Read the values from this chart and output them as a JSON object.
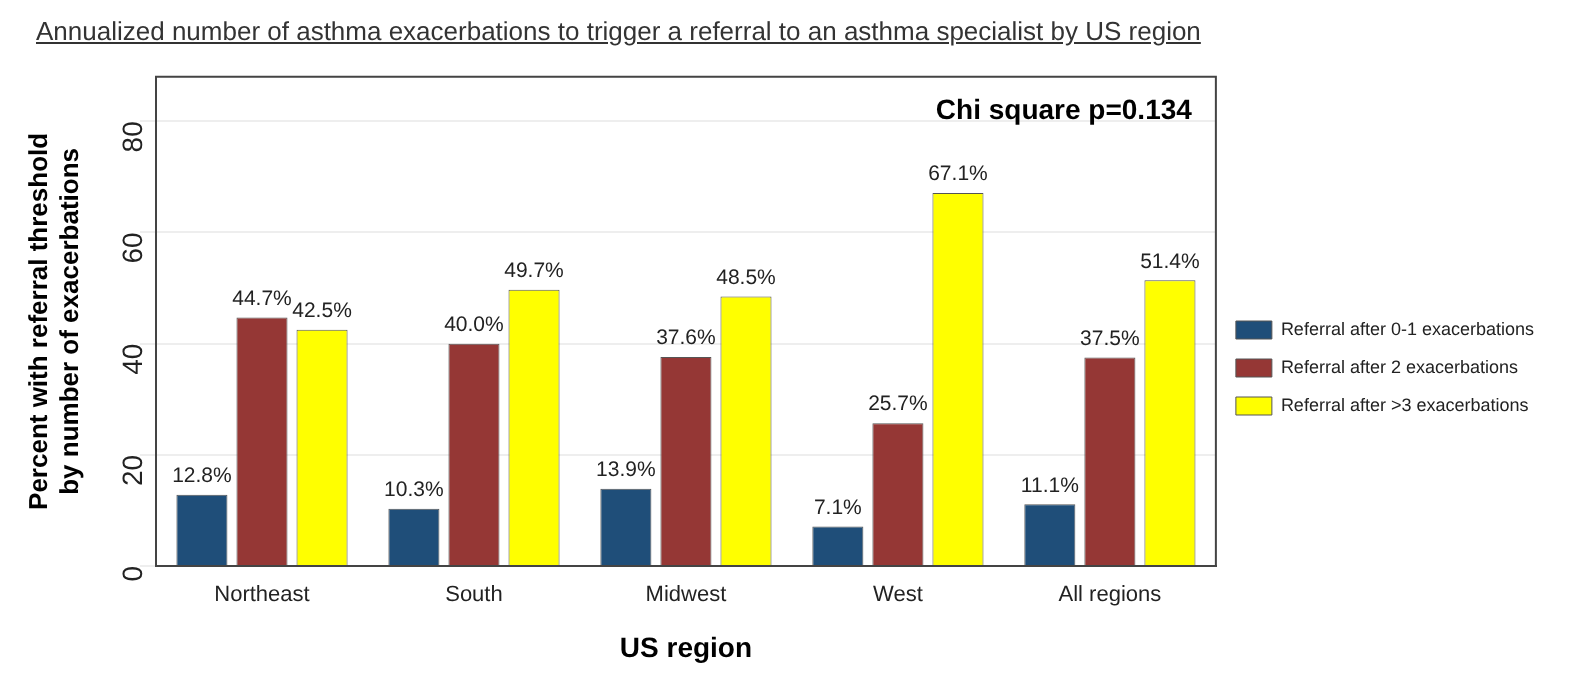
{
  "chart_data": {
    "type": "bar",
    "title": "Annualized number of asthma exacerbations to trigger a referral to an asthma specialist by US region",
    "xlabel": "US region",
    "ylabel": "Percent with referral threshold\nby number of exacerbations",
    "categories": [
      "Northeast",
      "South",
      "Midwest",
      "West",
      "All regions"
    ],
    "series": [
      {
        "name": "Referral after 0-1 exacerbations",
        "color": "#1f4e79",
        "values": [
          12.8,
          10.3,
          13.9,
          7.1,
          11.1
        ],
        "value_labels": [
          "12.8%",
          "10.3%",
          "13.9%",
          "7.1%",
          "11.1%"
        ]
      },
      {
        "name": "Referral after 2 exacerbations",
        "color": "#953735",
        "values": [
          44.7,
          40.0,
          37.6,
          25.7,
          37.5
        ],
        "value_labels": [
          "44.7%",
          "40.0%",
          "37.6%",
          "25.7%",
          "37.5%"
        ]
      },
      {
        "name": "Referral after >3 exacerbations",
        "color": "#ffff00",
        "values": [
          42.5,
          49.7,
          48.5,
          67.1,
          51.4
        ],
        "value_labels": [
          "42.5%",
          "49.7%",
          "48.5%",
          "67.1%",
          "51.4%"
        ]
      }
    ],
    "ylim": [
      0,
      88
    ],
    "yticks": [
      0,
      20,
      40,
      60,
      80
    ],
    "grid": "y",
    "legend": "right",
    "annotations": [
      "Chi square p=0.134"
    ]
  }
}
